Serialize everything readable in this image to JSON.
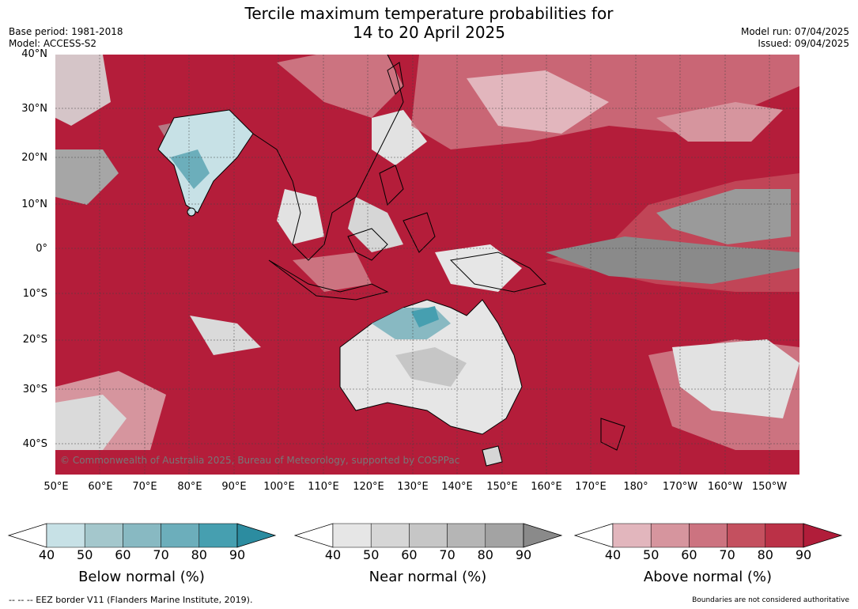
{
  "title_line1": "Tercile maximum temperature probabilities for",
  "title_line2": "14 to 20 April 2025",
  "meta_left": {
    "base_period": "Base period: 1981-2018",
    "model": "Model: ACCESS-S2"
  },
  "meta_right": {
    "model_run": "Model run: 07/04/2025",
    "issued": "Issued: 09/04/2025"
  },
  "map": {
    "copyright": "© Commonwealth of Australia 2025, Bureau of Meteorology, supported by COSPPac",
    "lat_labels": [
      "40°N",
      "30°N",
      "20°N",
      "10°N",
      "0°",
      "10°S",
      "20°S",
      "30°S",
      "40°S"
    ],
    "lon_labels": [
      "50°E",
      "60°E",
      "70°E",
      "80°E",
      "90°E",
      "100°E",
      "110°E",
      "120°E",
      "130°E",
      "140°E",
      "150°E",
      "160°E",
      "170°E",
      "180°",
      "170°W",
      "160°W",
      "150°W"
    ]
  },
  "colorbars": [
    {
      "title": "Below normal (%)",
      "ticks": [
        "40",
        "50",
        "60",
        "70",
        "80",
        "90"
      ],
      "colors": [
        "#c7e1e6",
        "#a4c7cc",
        "#88b9c2",
        "#6caebb",
        "#469fb0"
      ],
      "extend": "#2c8ca0"
    },
    {
      "title": "Near normal (%)",
      "ticks": [
        "40",
        "50",
        "60",
        "70",
        "80",
        "90"
      ],
      "colors": [
        "#e6e6e6",
        "#d6d6d6",
        "#c6c6c6",
        "#b5b5b5",
        "#a3a3a3"
      ],
      "extend": "#8a8a8a"
    },
    {
      "title": "Above normal (%)",
      "ticks": [
        "40",
        "50",
        "60",
        "70",
        "80",
        "90"
      ],
      "colors": [
        "#e2b6bd",
        "#d6959e",
        "#cc7380",
        "#c4505f",
        "#bb3147"
      ],
      "extend": "#b11d3a"
    }
  ],
  "footer": {
    "left": "--  --  -- EEZ border V11 (Flanders Marine Institute, 2019).",
    "right": "Boundaries are not considered authoritative"
  }
}
